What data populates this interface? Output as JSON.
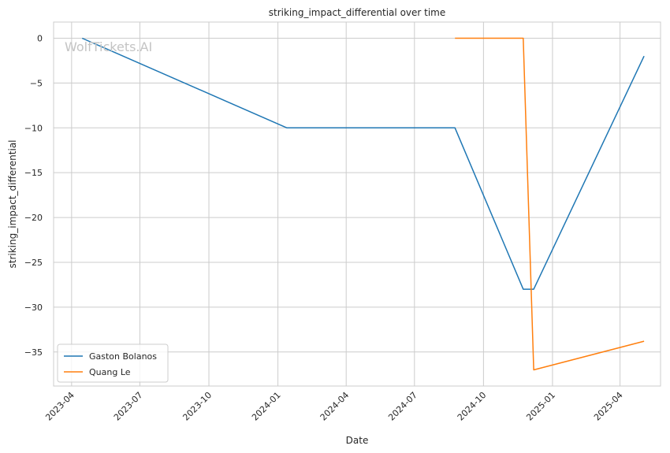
{
  "watermark": "WolfTickets.AI",
  "chart_data": {
    "type": "line",
    "title": "striking_impact_differential over time",
    "xlabel": "Date",
    "ylabel": "striking_impact_differential",
    "x_is_date": true,
    "xlim": [
      "2023-03-08",
      "2025-05-25"
    ],
    "ylim": [
      -38.8,
      1.8
    ],
    "x_ticks": [
      "2023-04-01",
      "2023-07-01",
      "2023-10-01",
      "2024-01-01",
      "2024-04-01",
      "2024-07-01",
      "2024-10-01",
      "2025-01-01",
      "2025-04-01"
    ],
    "x_tick_labels": [
      "2023-04",
      "2023-07",
      "2023-10",
      "2024-01",
      "2024-04",
      "2024-07",
      "2024-10",
      "2025-01",
      "2025-04"
    ],
    "y_ticks": [
      0,
      -5,
      -10,
      -15,
      -20,
      -25,
      -30,
      -35
    ],
    "y_tick_labels": [
      "0",
      "−5",
      "−10",
      "−15",
      "−20",
      "−25",
      "−30",
      "−35"
    ],
    "grid": true,
    "legend_position": "lower-left",
    "series": [
      {
        "name": "Gaston Bolanos",
        "color": "#1f77b4",
        "x": [
          "2023-04-15",
          "2024-01-13",
          "2024-08-24",
          "2024-11-23",
          "2024-12-07",
          "2025-05-03"
        ],
        "y": [
          0,
          -10,
          -10,
          -28,
          -28,
          -2
        ]
      },
      {
        "name": "Quang Le",
        "color": "#ff7f0e",
        "x": [
          "2024-08-24",
          "2024-11-23",
          "2024-12-07",
          "2025-05-03"
        ],
        "y": [
          0,
          0,
          -37,
          -33.8
        ]
      }
    ]
  }
}
